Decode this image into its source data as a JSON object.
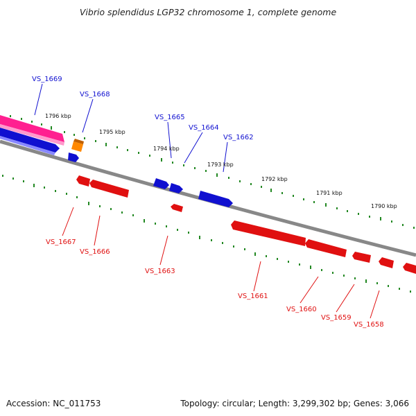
{
  "title": "Vibrio splendidus LGP32 chromosome 1, complete genome",
  "footer": {
    "accession": "Accession: NC_011753",
    "summary": "Topology: circular; Length: 3,299,302 bp; Genes: 3,066"
  },
  "kbp_labels": [
    "1796 kbp",
    "1795 kbp",
    "1794 kbp",
    "1793 kbp",
    "1792 kbp",
    "1791 kbp",
    "1790 kbp"
  ],
  "genes_forward": [
    "VS_1669",
    "VS_1668",
    "VS_1665",
    "VS_1664",
    "VS_1662"
  ],
  "genes_reverse": [
    "VS_1667",
    "VS_1666",
    "VS_1663",
    "VS_1661",
    "VS_1660",
    "VS_1659",
    "VS_1658"
  ],
  "colors": {
    "forward": "#1010d0",
    "reverse": "#e01010",
    "rna": "#ff2090",
    "other": "#ff8800",
    "backbone": "#888888",
    "ticks": "#228822"
  }
}
